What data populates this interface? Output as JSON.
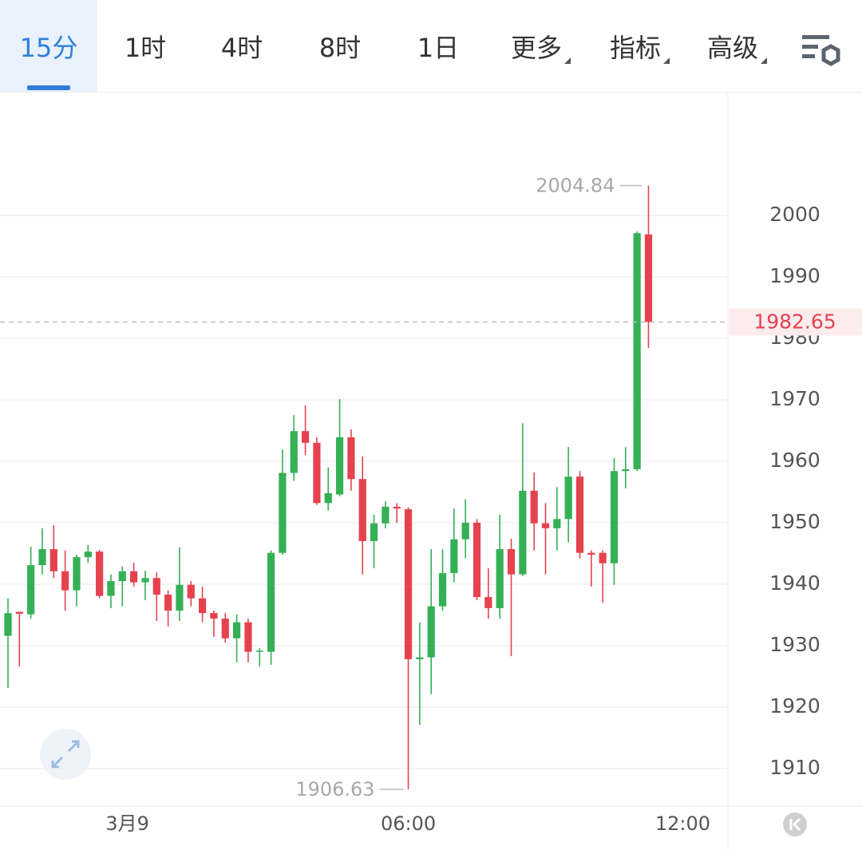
{
  "tabs": [
    {
      "label": "15分",
      "active": true
    },
    {
      "label": "1时"
    },
    {
      "label": "4时"
    },
    {
      "label": "8时"
    },
    {
      "label": "1日"
    },
    {
      "label": "更多",
      "dropdown": true
    },
    {
      "label": "指标",
      "dropdown": true
    },
    {
      "label": "高级",
      "dropdown": true
    }
  ],
  "chart_data": {
    "type": "candlestick",
    "categories": [
      null,
      null,
      null,
      null,
      null,
      null,
      null,
      null,
      null,
      null,
      null,
      "3月9",
      null,
      null,
      null,
      null,
      null,
      null,
      null,
      null,
      null,
      null,
      null,
      null,
      null,
      null,
      null,
      null,
      null,
      null,
      null,
      null,
      null,
      null,
      null,
      "06:00",
      null,
      null,
      null,
      null,
      null,
      null,
      null,
      null,
      null,
      null,
      null,
      null,
      null,
      null,
      null,
      null,
      null,
      null,
      null,
      null,
      null,
      null,
      null,
      "12:00",
      null,
      null,
      null
    ],
    "open": [
      1931.6,
      1935.5,
      1935.1,
      1943.1,
      1945.7,
      1942.1,
      1939.0,
      1944.4,
      1945.3,
      1938.1,
      1940.5,
      1942.1,
      1940.3,
      1941.0,
      1938.3,
      1935.7,
      1939.9,
      1937.7,
      1935.3,
      1934.4,
      1931.2,
      1933.8,
      1929.0,
      1929.0,
      1945.1,
      1958.1,
      1964.9,
      1963.0,
      1953.2,
      1954.6,
      1963.9,
      1957.1,
      1947.0,
      1949.9,
      1952.6,
      1952.2,
      1927.8,
      1928.1,
      1936.4,
      1941.8,
      1947.3,
      1950.0,
      1937.9,
      1936.1,
      1945.7,
      1941.6,
      1955.2,
      1949.9,
      1949.1,
      1950.6,
      1957.5,
      1945.1,
      1945.1,
      1943.4,
      1958.4,
      1958.7,
      1996.9,
      null,
      null,
      null,
      null,
      null,
      null
    ],
    "high": [
      1937.7,
      1935.5,
      1946.1,
      1949.1,
      1949.6,
      1945.5,
      1944.8,
      1946.4,
      1945.6,
      1941.6,
      1942.9,
      1943.5,
      1942.2,
      1941.9,
      1939.0,
      1946.0,
      1940.5,
      1939.6,
      1935.7,
      1935.3,
      1935.1,
      1934.4,
      1929.6,
      1945.5,
      1961.9,
      1967.5,
      1969.1,
      1963.9,
      1959.0,
      1970.1,
      1965.2,
      1960.8,
      1951.3,
      1953.5,
      1953.2,
      1952.5,
      1933.8,
      1945.7,
      1945.7,
      1952.3,
      1953.8,
      1950.6,
      1942.6,
      1951.3,
      1947.4,
      1966.2,
      1958.2,
      1953.2,
      1955.8,
      1962.3,
      1958.4,
      1945.5,
      1945.5,
      1960.5,
      1962.3,
      1997.4,
      2004.84,
      null,
      null,
      null,
      null,
      null,
      null
    ],
    "low": [
      1923.1,
      1926.6,
      1934.4,
      1941.6,
      1941.0,
      1935.7,
      1936.4,
      1943.5,
      1937.7,
      1936.1,
      1936.4,
      1939.6,
      1937.4,
      1934.0,
      1933.1,
      1934.0,
      1936.4,
      1933.8,
      1931.4,
      1930.5,
      1927.3,
      1927.3,
      1926.6,
      1926.9,
      1944.8,
      1956.8,
      1961.0,
      1952.9,
      1952.0,
      1954.3,
      1955.2,
      1941.6,
      1942.6,
      1949.1,
      1950.0,
      1906.63,
      1917.1,
      1922.1,
      1935.7,
      1940.3,
      1944.2,
      1937.4,
      1934.4,
      1934.4,
      1928.3,
      1941.3,
      1945.5,
      1941.6,
      1945.5,
      1946.8,
      1944.2,
      1939.6,
      1937.0,
      1939.9,
      1955.6,
      1958.4,
      1978.4,
      null,
      null,
      null,
      null,
      null,
      null
    ],
    "close": [
      1935.3,
      1935.2,
      1943.1,
      1945.7,
      1942.1,
      1939.0,
      1944.4,
      1945.3,
      1938.1,
      1940.5,
      1942.1,
      1940.3,
      1941.0,
      1938.3,
      1935.7,
      1939.9,
      1937.7,
      1935.3,
      1934.4,
      1931.2,
      1933.8,
      1929.0,
      1929.2,
      1945.1,
      1958.1,
      1964.9,
      1963.0,
      1953.2,
      1954.8,
      1963.9,
      1957.1,
      1947.0,
      1949.9,
      1952.6,
      1952.3,
      1927.8,
      1928.1,
      1936.4,
      1941.8,
      1947.3,
      1950.0,
      1937.9,
      1936.1,
      1945.7,
      1941.6,
      1955.2,
      1949.9,
      1949.1,
      1950.6,
      1957.5,
      1945.1,
      1944.8,
      1943.4,
      1958.4,
      1958.7,
      1997.1,
      1982.65,
      null,
      null,
      null,
      null,
      null,
      null
    ],
    "up_color": "#35b056",
    "down_color": "#e5424f",
    "ylim": [
      1903.9,
      2020.1
    ],
    "yticks": [
      1910,
      1920,
      1930,
      1940,
      1950,
      1960,
      1970,
      1980,
      1990,
      2000
    ],
    "grid": true
  }
}
